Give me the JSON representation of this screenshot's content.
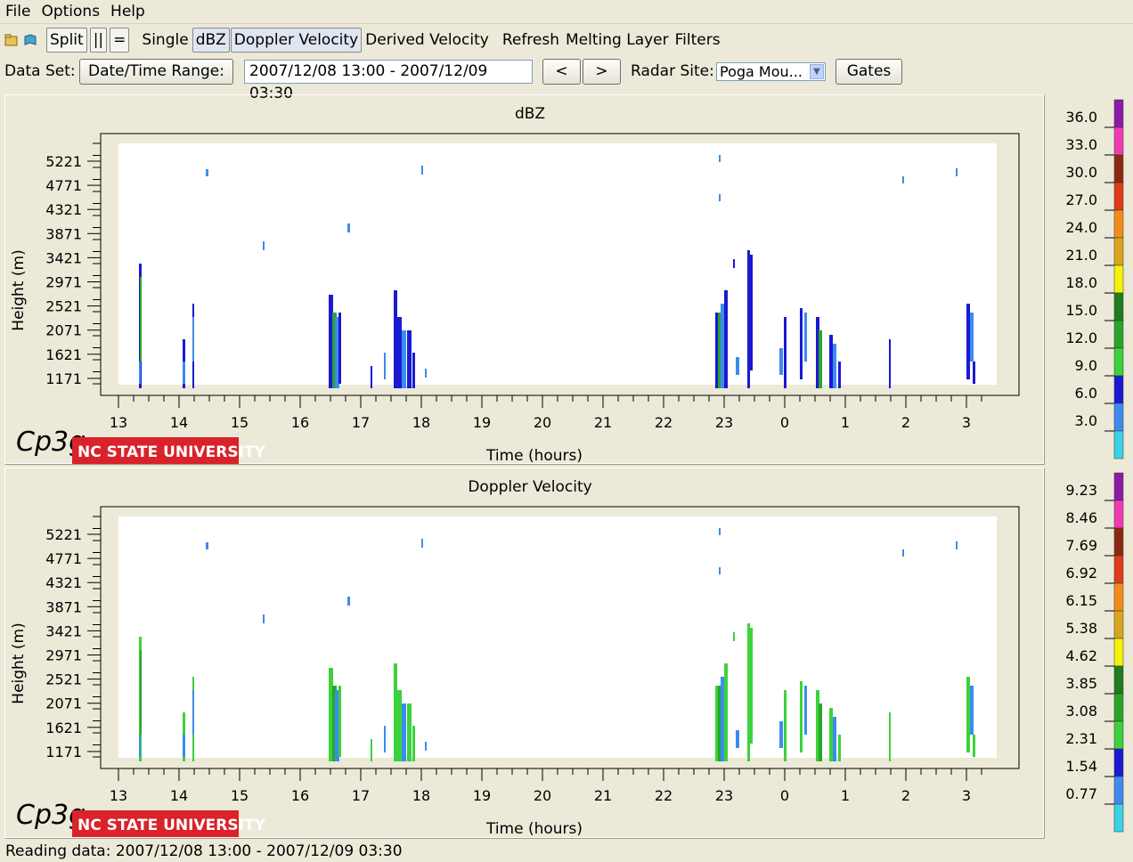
{
  "menu": [
    "File",
    "Options",
    "Help"
  ],
  "toolbar": {
    "split": "Split",
    "bars": "||",
    "equals": "=",
    "single": "Single",
    "dbz": "dBZ",
    "doppler": "Doppler Velocity",
    "derived": "Derived Velocity",
    "refresh": "Refresh",
    "melting": "Melting Layer",
    "filters": "Filters"
  },
  "dataset": {
    "label": "Data Set:",
    "range_button": "Date/Time Range:",
    "range_value": "2007/12/08 13:00 - 2007/12/09 03:30",
    "prev": "<",
    "next": ">",
    "radar_label": "Radar Site:",
    "radar_value": "Poga Mou...",
    "gates": "Gates"
  },
  "panels": [
    {
      "title": "dBZ",
      "ylabel": "Height (m)",
      "xlabel": "Time (hours)",
      "legend": [
        "36.0",
        "33.0",
        "30.0",
        "27.0",
        "24.0",
        "21.0",
        "18.0",
        "15.0",
        "12.0",
        "9.0",
        "6.0",
        "3.0"
      ]
    },
    {
      "title": "Doppler Velocity",
      "ylabel": "Height (m)",
      "xlabel": "Time (hours)",
      "legend": [
        "9.23",
        "8.46",
        "7.69",
        "6.92",
        "6.15",
        "5.38",
        "4.62",
        "3.85",
        "3.08",
        "2.31",
        "1.54",
        "0.77"
      ]
    }
  ],
  "axes": {
    "y_ticks": [
      "5221",
      "4771",
      "4321",
      "3871",
      "3421",
      "2971",
      "2521",
      "2071",
      "1621",
      "1171"
    ],
    "x_ticks": [
      "13",
      "14",
      "15",
      "16",
      "17",
      "18",
      "19",
      "20",
      "21",
      "22",
      "23",
      "0",
      "1",
      "2",
      "3"
    ]
  },
  "legend_colors": [
    "#8b1aa6",
    "#f03ab4",
    "#8b2a10",
    "#e03b1a",
    "#f58c1a",
    "#d9a51c",
    "#f2f20a",
    "#1e7d1e",
    "#2aa52a",
    "#3cd23c",
    "#1a1ad2",
    "#3c8cf0",
    "#3cd2e6"
  ],
  "logo": {
    "cpg": "Cp3g",
    "university": "NC STATE UNIVERSITY"
  },
  "status": "Reading data: 2007/12/08 13:00 - 2007/12/09 03:30"
}
